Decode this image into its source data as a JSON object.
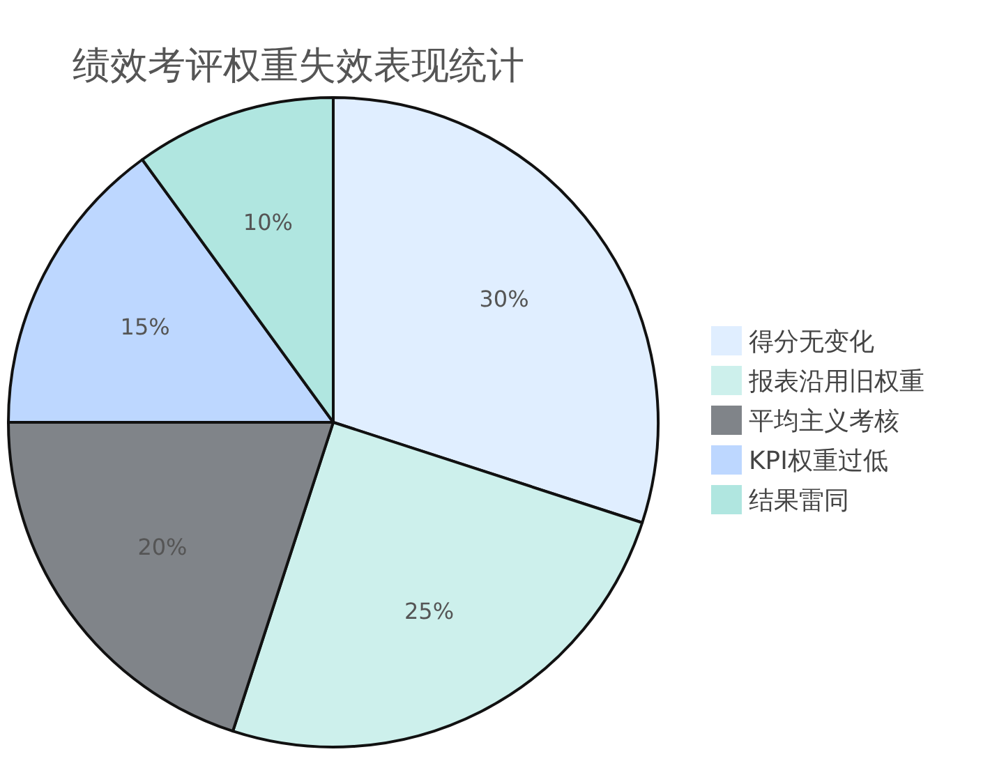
{
  "chart_data": {
    "type": "pie",
    "title": "绩效考评权重失效表现统计",
    "categories": [
      "得分无变化",
      "报表沿用旧权重",
      "平均主义考核",
      "KPI权重过低",
      "结果雷同"
    ],
    "values": [
      30,
      25,
      20,
      15,
      10
    ],
    "colors": [
      "#e0eeff",
      "#cdf0ec",
      "#808489",
      "#bdd7ff",
      "#b0e6e0"
    ],
    "value_labels": [
      "30%",
      "25%",
      "20%",
      "15%",
      "10%"
    ],
    "legend": "right"
  }
}
